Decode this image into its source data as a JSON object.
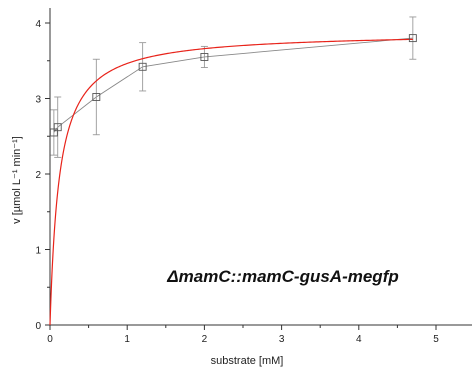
{
  "chart_data": {
    "type": "scatter",
    "annotation": "ΔmamC::mamC-gusA-megfp",
    "xlabel": "substrate [mM]",
    "ylabel": "v [µmol L⁻¹ min⁻¹]",
    "xlim": [
      0,
      5.4
    ],
    "ylim": [
      0,
      4.25
    ],
    "xticks": [
      0,
      1,
      2,
      3,
      4,
      5
    ],
    "yticks": [
      0,
      1,
      2,
      3,
      4
    ],
    "grid": false,
    "legend": "none",
    "series": [
      {
        "kind": "measured",
        "marker": "open-square",
        "connected": true,
        "color": "#888888",
        "x": [
          0.05,
          0.1,
          0.6,
          1.2,
          2.0,
          4.7
        ],
        "y": [
          2.55,
          2.62,
          3.02,
          3.42,
          3.55,
          3.8
        ],
        "err": [
          0.3,
          0.4,
          0.5,
          0.32,
          0.14,
          0.28
        ]
      },
      {
        "kind": "fit",
        "color": "#e8231a",
        "vmax": 3.88,
        "km": 0.12,
        "xrange": [
          0,
          4.7
        ]
      }
    ]
  }
}
